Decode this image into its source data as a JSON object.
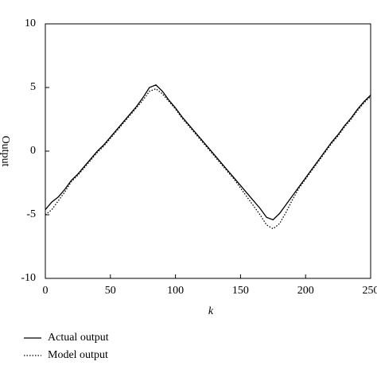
{
  "chart_data": {
    "type": "line",
    "xlabel": "k",
    "ylabel": "Output",
    "x": [
      0,
      5,
      10,
      15,
      20,
      25,
      30,
      35,
      40,
      45,
      50,
      55,
      60,
      65,
      70,
      75,
      80,
      85,
      90,
      95,
      100,
      105,
      110,
      115,
      120,
      125,
      130,
      135,
      140,
      145,
      150,
      155,
      160,
      165,
      170,
      175,
      180,
      185,
      190,
      195,
      200,
      205,
      210,
      215,
      220,
      225,
      230,
      235,
      240,
      245,
      250
    ],
    "series": [
      {
        "name": "Actual output",
        "color": "#000000",
        "dash": "none",
        "values": [
          -4.6,
          -4.0,
          -3.6,
          -3.0,
          -2.3,
          -1.8,
          -1.2,
          -0.6,
          0.0,
          0.5,
          1.1,
          1.7,
          2.3,
          2.9,
          3.5,
          4.2,
          5.0,
          5.2,
          4.7,
          4.0,
          3.4,
          2.7,
          2.1,
          1.5,
          0.9,
          0.3,
          -0.3,
          -0.9,
          -1.5,
          -2.1,
          -2.7,
          -3.3,
          -3.9,
          -4.5,
          -5.2,
          -5.4,
          -4.9,
          -4.2,
          -3.5,
          -2.8,
          -2.1,
          -1.4,
          -0.7,
          0.0,
          0.7,
          1.3,
          2.0,
          2.6,
          3.3,
          3.9,
          4.4
        ]
      },
      {
        "name": "Model output",
        "color": "#000000",
        "dash": "1.5 2",
        "values": [
          -5.0,
          -4.6,
          -3.9,
          -3.2,
          -2.4,
          -1.9,
          -1.3,
          -0.7,
          -0.1,
          0.4,
          1.0,
          1.6,
          2.2,
          2.8,
          3.4,
          4.0,
          4.7,
          4.9,
          4.5,
          3.9,
          3.3,
          2.6,
          2.0,
          1.4,
          0.8,
          0.2,
          -0.4,
          -1.0,
          -1.6,
          -2.2,
          -2.9,
          -3.6,
          -4.3,
          -5.0,
          -5.8,
          -6.1,
          -5.7,
          -4.8,
          -3.8,
          -2.9,
          -2.2,
          -1.5,
          -0.8,
          -0.1,
          0.6,
          1.2,
          1.9,
          2.5,
          3.2,
          3.8,
          4.3
        ]
      }
    ],
    "xlim": [
      0,
      250
    ],
    "xticks": [
      0,
      50,
      100,
      150,
      200,
      250
    ],
    "ylim": [
      -10,
      10
    ],
    "yticks": [
      -10,
      -5,
      0,
      5,
      10
    ],
    "grid": false
  }
}
